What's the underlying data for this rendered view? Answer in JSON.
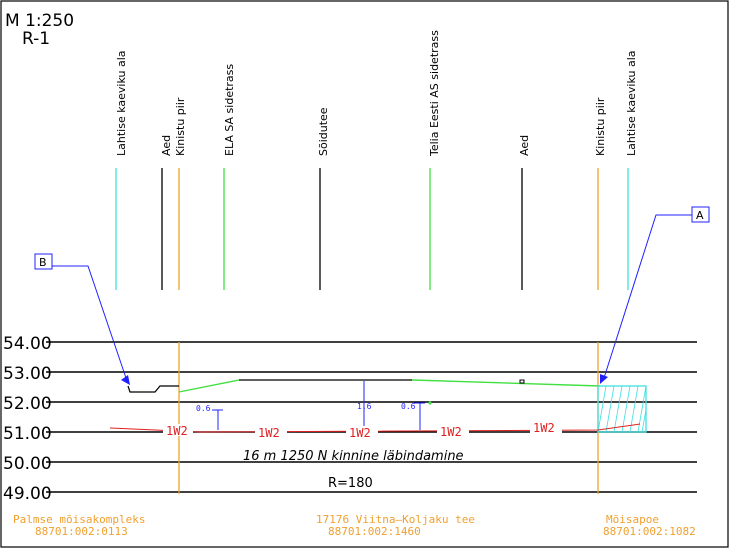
{
  "header": {
    "scale": "M 1:250",
    "section": "R-1"
  },
  "columns": [
    {
      "label": "Lahtise kaeviku ala",
      "color": "#40e0e0"
    },
    {
      "label": "Aed",
      "color": "#000000"
    },
    {
      "label": "Kinistu piir",
      "color": "#f0a030"
    },
    {
      "label": "ELA SA sidetrass",
      "color": "#40e040"
    },
    {
      "label": "Sõidutee",
      "color": "#000000"
    },
    {
      "label": "Telia Eesti AS sidetrass",
      "color": "#40e040"
    },
    {
      "label": "Aed",
      "color": "#000000"
    },
    {
      "label": "Kinistu piir",
      "color": "#f0a030"
    },
    {
      "label": "Lahtise kaeviku ala",
      "color": "#40e0e0"
    }
  ],
  "elevations": [
    "54.00",
    "53.00",
    "52.00",
    "51.00",
    "50.00",
    "49.00"
  ],
  "callouts": {
    "a": "A",
    "b": "B"
  },
  "dimensions": {
    "left": "0.6",
    "middle": "1.6",
    "right": "0.6"
  },
  "pipe_label": "1W2",
  "annotation": "16 m 1250 N kinnine läbindamine",
  "radius": "R=180",
  "parcels": [
    {
      "name": "Palmse mõisakompleks",
      "code": "88701:002:0113"
    },
    {
      "name": "17176 Viitna—Koljaku tee",
      "code": "88701:002:1460"
    },
    {
      "name": "Mõisapoe",
      "code": "88701:002:1082"
    }
  ],
  "colors": {
    "pipe": "#e02020",
    "ground": "#40e040",
    "callout": "#2020ff",
    "parcel_text": "#f0a030",
    "hatch": "#40e0e0",
    "frame": "#000000"
  }
}
